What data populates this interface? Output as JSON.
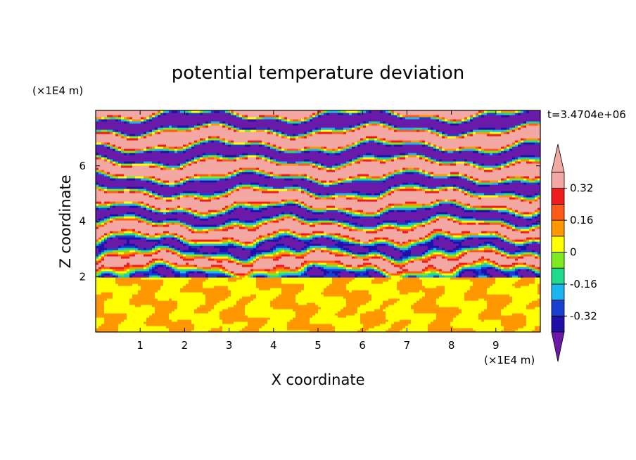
{
  "chart_data": {
    "type": "heatmap",
    "title": "potential temperature deviation",
    "xlabel": "X coordinate",
    "ylabel": "Z coordinate",
    "x_unit": "(×1E4 m)",
    "y_unit": "(×1E4 m)",
    "time_label": "t=3.4704e+06",
    "x_ticks": [
      "1",
      "2",
      "3",
      "4",
      "5",
      "6",
      "7",
      "8",
      "9"
    ],
    "y_ticks": [
      "2",
      "4",
      "6"
    ],
    "xlim": [
      0,
      10
    ],
    "ylim": [
      0,
      8
    ],
    "colorbar": {
      "tick_labels": [
        "0.32",
        "0.16",
        "0",
        "-0.16",
        "-0.32"
      ],
      "tick_values": [
        0.32,
        0.16,
        0,
        -0.16,
        -0.32
      ],
      "levels": [
        -0.4,
        -0.32,
        -0.24,
        -0.16,
        -0.08,
        0,
        0.08,
        0.16,
        0.24,
        0.32,
        0.4
      ],
      "colors": [
        "#4a1a9a",
        "#2010a8",
        "#1a3ecf",
        "#19b6f0",
        "#1edc8c",
        "#7ee820",
        "#ffff00",
        "#ff9800",
        "#ff5a1a",
        "#ee1c1c",
        "#f4a8a4"
      ],
      "under_color": "#6a1aa8",
      "over_color": "#f4a8a4"
    },
    "regions": [
      {
        "z_range": [
          0,
          2
        ],
        "description": "near-neutral values",
        "dominant_levels": [
          0,
          0.08
        ]
      },
      {
        "z_range": [
          2,
          4.8
        ],
        "description": "mixed strong fluctuations",
        "dominant_levels": [
          -0.4,
          0.4
        ]
      },
      {
        "z_range": [
          4.8,
          8
        ],
        "description": "alternating horizontal layers",
        "dominant_levels": [
          -0.4,
          0.4
        ]
      }
    ]
  }
}
